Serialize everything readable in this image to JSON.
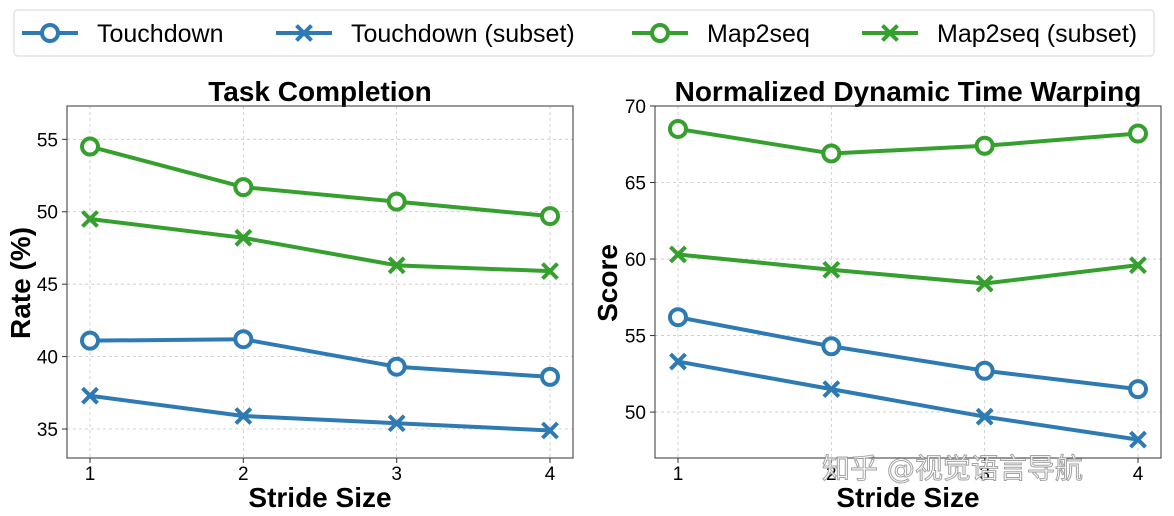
{
  "colors": {
    "touchdown": "#2e7bb4",
    "map2seq": "#35a02d"
  },
  "legend": [
    {
      "label": "Touchdown",
      "color": "#2e7bb4",
      "marker": "circle"
    },
    {
      "label": "Touchdown (subset)",
      "color": "#2e7bb4",
      "marker": "x"
    },
    {
      "label": "Map2seq",
      "color": "#35a02d",
      "marker": "circle"
    },
    {
      "label": "Map2seq (subset)",
      "color": "#35a02d",
      "marker": "x"
    }
  ],
  "chart_data": [
    {
      "type": "line",
      "title": "Task Completion",
      "xlabel": "Stride Size",
      "ylabel": "Rate (%)",
      "x": [
        1,
        2,
        3,
        4
      ],
      "xticks": [
        "1",
        "2",
        "3",
        "4"
      ],
      "xlim": [
        0.85,
        4.15
      ],
      "ylim": [
        33.0,
        57.3
      ],
      "yticks": [
        35,
        40,
        45,
        50,
        55
      ],
      "grid": true,
      "series": [
        {
          "name": "Touchdown",
          "values": [
            41.1,
            41.2,
            39.3,
            38.6
          ],
          "color": "#2e7bb4",
          "marker": "circle"
        },
        {
          "name": "Touchdown (subset)",
          "values": [
            37.3,
            35.9,
            35.4,
            34.9
          ],
          "color": "#2e7bb4",
          "marker": "x"
        },
        {
          "name": "Map2seq",
          "values": [
            54.5,
            51.7,
            50.7,
            49.7
          ],
          "color": "#35a02d",
          "marker": "circle"
        },
        {
          "name": "Map2seq (subset)",
          "values": [
            49.5,
            48.2,
            46.3,
            45.9
          ],
          "color": "#35a02d",
          "marker": "x"
        }
      ]
    },
    {
      "type": "line",
      "title": "Normalized Dynamic Time Warping",
      "xlabel": "Stride Size",
      "ylabel": "Score",
      "x": [
        1,
        2,
        3,
        4
      ],
      "xticks": [
        "1",
        "2",
        "3",
        "4"
      ],
      "xlim": [
        0.85,
        4.15
      ],
      "ylim": [
        47.0,
        70.0
      ],
      "yticks": [
        50,
        55,
        60,
        65,
        70
      ],
      "grid": true,
      "series": [
        {
          "name": "Touchdown",
          "values": [
            56.2,
            54.3,
            52.7,
            51.5
          ],
          "color": "#2e7bb4",
          "marker": "circle"
        },
        {
          "name": "Touchdown (subset)",
          "values": [
            53.3,
            51.5,
            49.7,
            48.2
          ],
          "color": "#2e7bb4",
          "marker": "x"
        },
        {
          "name": "Map2seq",
          "values": [
            68.5,
            66.9,
            67.4,
            68.2
          ],
          "color": "#35a02d",
          "marker": "circle"
        },
        {
          "name": "Map2seq (subset)",
          "values": [
            60.3,
            59.3,
            58.4,
            59.6
          ],
          "color": "#35a02d",
          "marker": "x"
        }
      ]
    }
  ],
  "watermark": "知乎 @视觉语言导航"
}
